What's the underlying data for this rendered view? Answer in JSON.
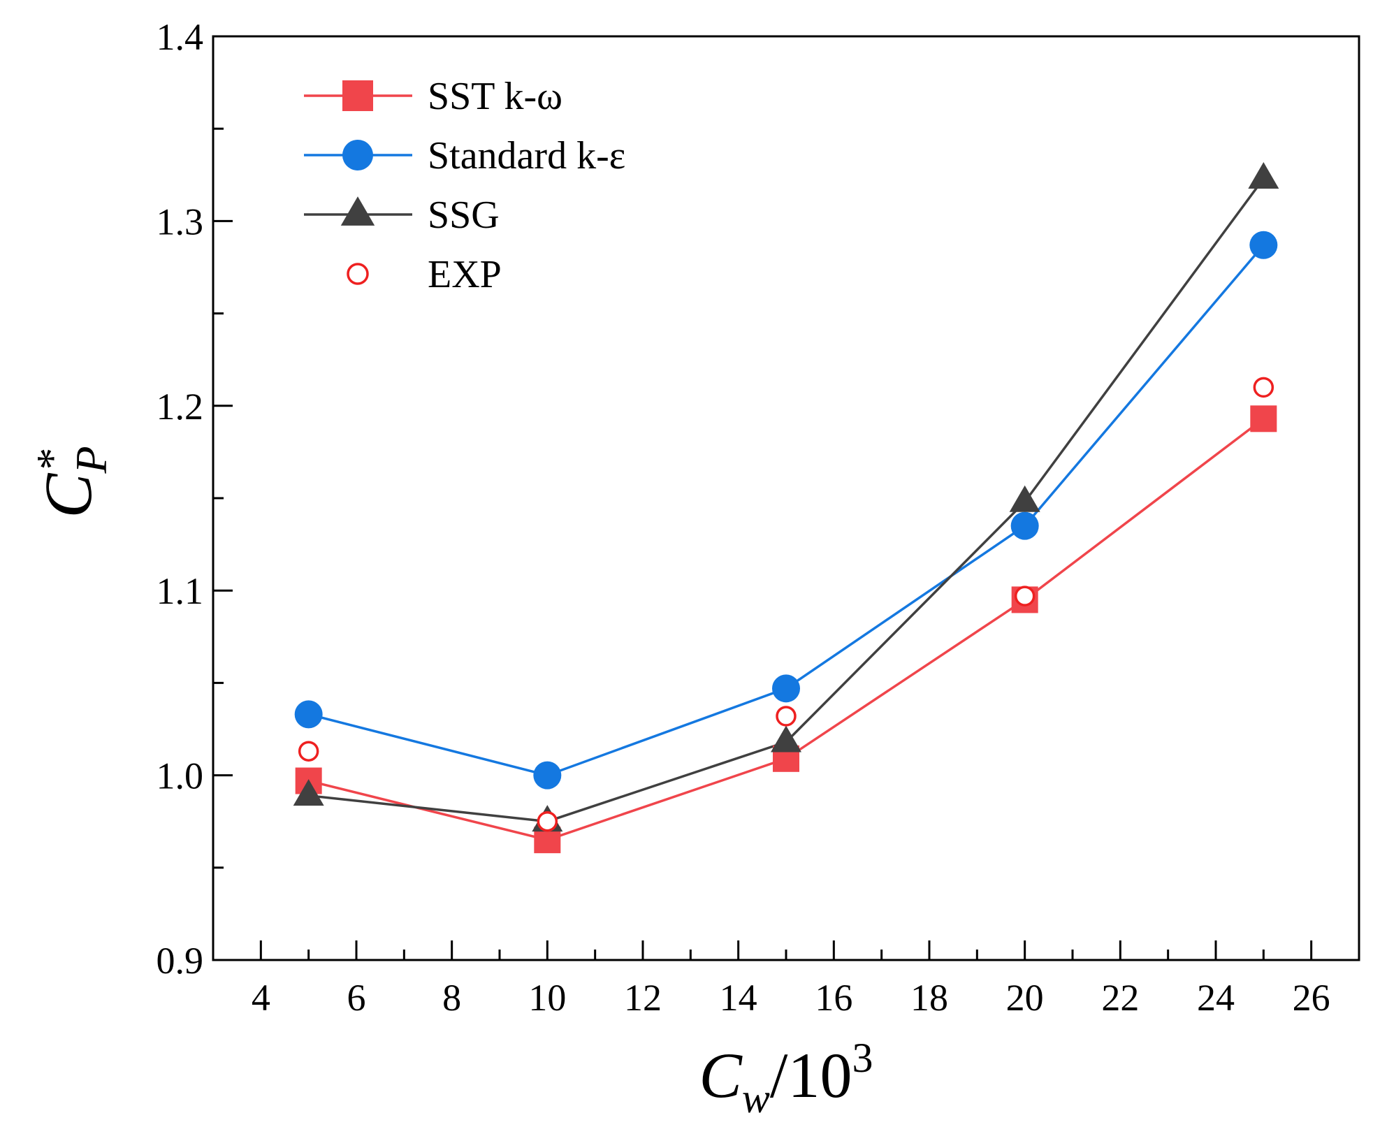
{
  "chart_data": {
    "type": "line",
    "title": "",
    "xlabel": {
      "base": "C",
      "sub": "w",
      "suffix": "/10",
      "sup": "3"
    },
    "ylabel": {
      "base": "C",
      "sub": "P",
      "sup": "*"
    },
    "xlim": [
      3,
      27
    ],
    "ylim": [
      0.9,
      1.4
    ],
    "x_ticks": [
      4,
      6,
      8,
      10,
      12,
      14,
      16,
      18,
      20,
      22,
      24,
      26
    ],
    "x_tick_labels": [
      "4",
      "6",
      "8",
      "10",
      "12",
      "14",
      "16",
      "18",
      "20",
      "22",
      "24",
      "26"
    ],
    "y_ticks": [
      0.9,
      1.0,
      1.1,
      1.2,
      1.3,
      1.4
    ],
    "y_tick_labels": [
      "0.9",
      "1.0",
      "1.1",
      "1.2",
      "1.3",
      "1.4"
    ],
    "grid": false,
    "legend_position": "top-left",
    "x": [
      5,
      10,
      15,
      20,
      25
    ],
    "series": [
      {
        "name": "SST k-ω",
        "values": [
          0.997,
          0.965,
          1.009,
          1.095,
          1.193
        ],
        "color": "#f0454b",
        "marker": "square",
        "line": true
      },
      {
        "name": "Standard k-ε",
        "values": [
          1.033,
          1.0,
          1.047,
          1.135,
          1.287
        ],
        "color": "#1478e0",
        "marker": "circle",
        "line": true
      },
      {
        "name": "SSG",
        "values": [
          0.989,
          0.975,
          1.018,
          1.148,
          1.323
        ],
        "color": "#404040",
        "marker": "triangle",
        "line": true
      },
      {
        "name": "EXP",
        "values": [
          1.013,
          0.975,
          1.032,
          1.097,
          1.21
        ],
        "color": "#ee2020",
        "marker": "open-circle",
        "line": false
      }
    ]
  }
}
